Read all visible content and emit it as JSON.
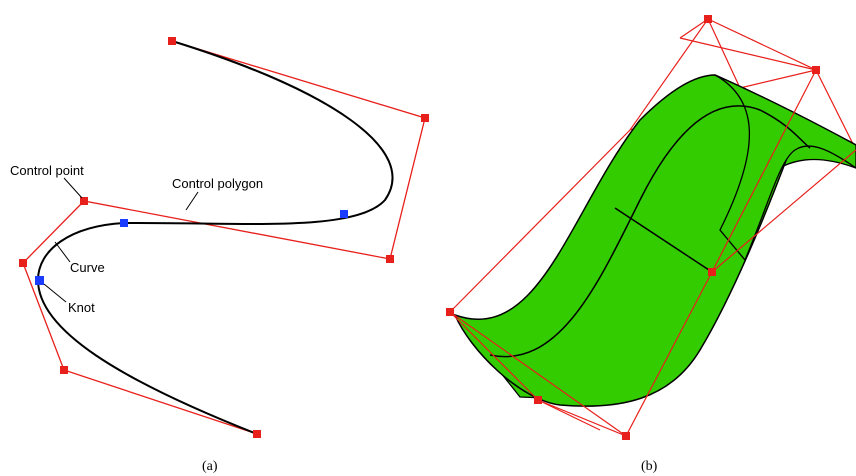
{
  "panel_a": {
    "labels": {
      "control_point": "Control point",
      "control_polygon": "Control polygon",
      "curve": "Curve",
      "knot": "Knot"
    },
    "caption": "(a)"
  },
  "panel_b": {
    "caption": "(b)"
  },
  "colors": {
    "control": "#e8201c",
    "knot": "#1a3cff",
    "curve": "#000000",
    "surface": "#33cc00"
  }
}
